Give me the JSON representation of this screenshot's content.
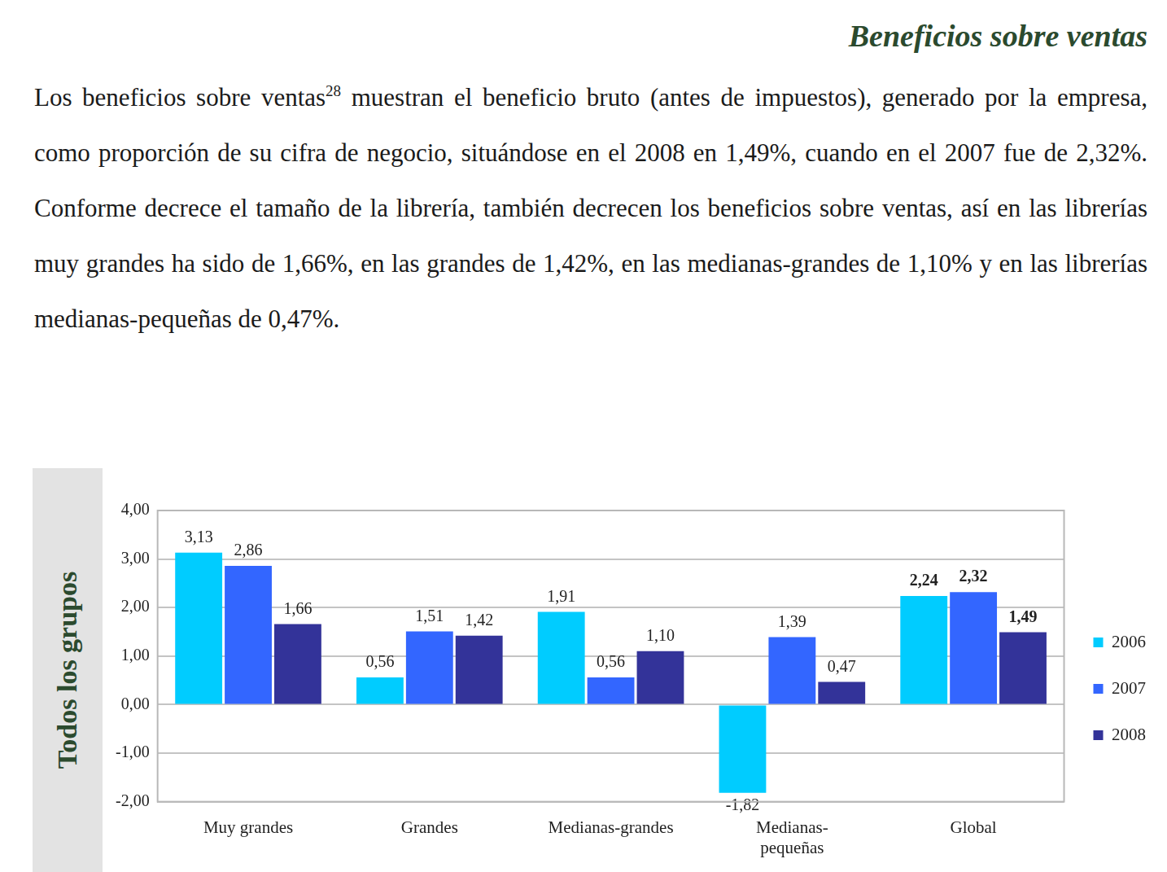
{
  "heading": "Beneficios sobre ventas",
  "paragraph": {
    "before": "Los beneficios sobre ventas",
    "footnote": "28",
    "after": " muestran el beneficio bruto (antes de impuestos), generado por la empresa, como proporción de su cifra de negocio, situándose en el 2008 en 1,49%, cuando en el 2007 fue de 2,32%. Conforme decrece el tamaño de la librería, también decrecen los beneficios sobre ventas, así en las librerías muy grandes ha sido de 1,66%, en las grandes de 1,42%, en las medianas-grandes de 1,10% y en las librerías medianas-pequeñas de 0,47%."
  },
  "side_label": "Todos los grupos",
  "chart_data": {
    "type": "bar",
    "categories": [
      "Muy grandes",
      "Grandes",
      "Medianas-grandes",
      [
        "Medianas-",
        "pequeñas"
      ],
      "Global"
    ],
    "series": [
      {
        "name": "2006",
        "color": "#00ccff",
        "values": [
          3.13,
          0.56,
          1.91,
          -1.82,
          2.24
        ],
        "value_labels": [
          "3,13",
          "0,56",
          "1,91",
          "-1,82",
          "2,24"
        ]
      },
      {
        "name": "2007",
        "color": "#3366ff",
        "values": [
          2.86,
          1.51,
          0.56,
          1.39,
          2.32
        ],
        "value_labels": [
          "2,86",
          "1,51",
          "0,56",
          "1,39",
          "2,32"
        ]
      },
      {
        "name": "2008",
        "color": "#333399",
        "values": [
          1.66,
          1.42,
          1.1,
          0.47,
          1.49
        ],
        "value_labels": [
          "1,66",
          "1,42",
          "1,10",
          "0,47",
          "1,49"
        ]
      }
    ],
    "ylim": [
      -2,
      4
    ],
    "yticks": [
      {
        "value": -2,
        "label": "-2,00"
      },
      {
        "value": -1,
        "label": "-1,00"
      },
      {
        "value": 0,
        "label": "0,00"
      },
      {
        "value": 1,
        "label": "1,00"
      },
      {
        "value": 2,
        "label": "2,00"
      },
      {
        "value": 3,
        "label": "3,00"
      },
      {
        "value": 4,
        "label": "4,00"
      }
    ],
    "grid": true,
    "legend": "right",
    "data_labels": true
  }
}
